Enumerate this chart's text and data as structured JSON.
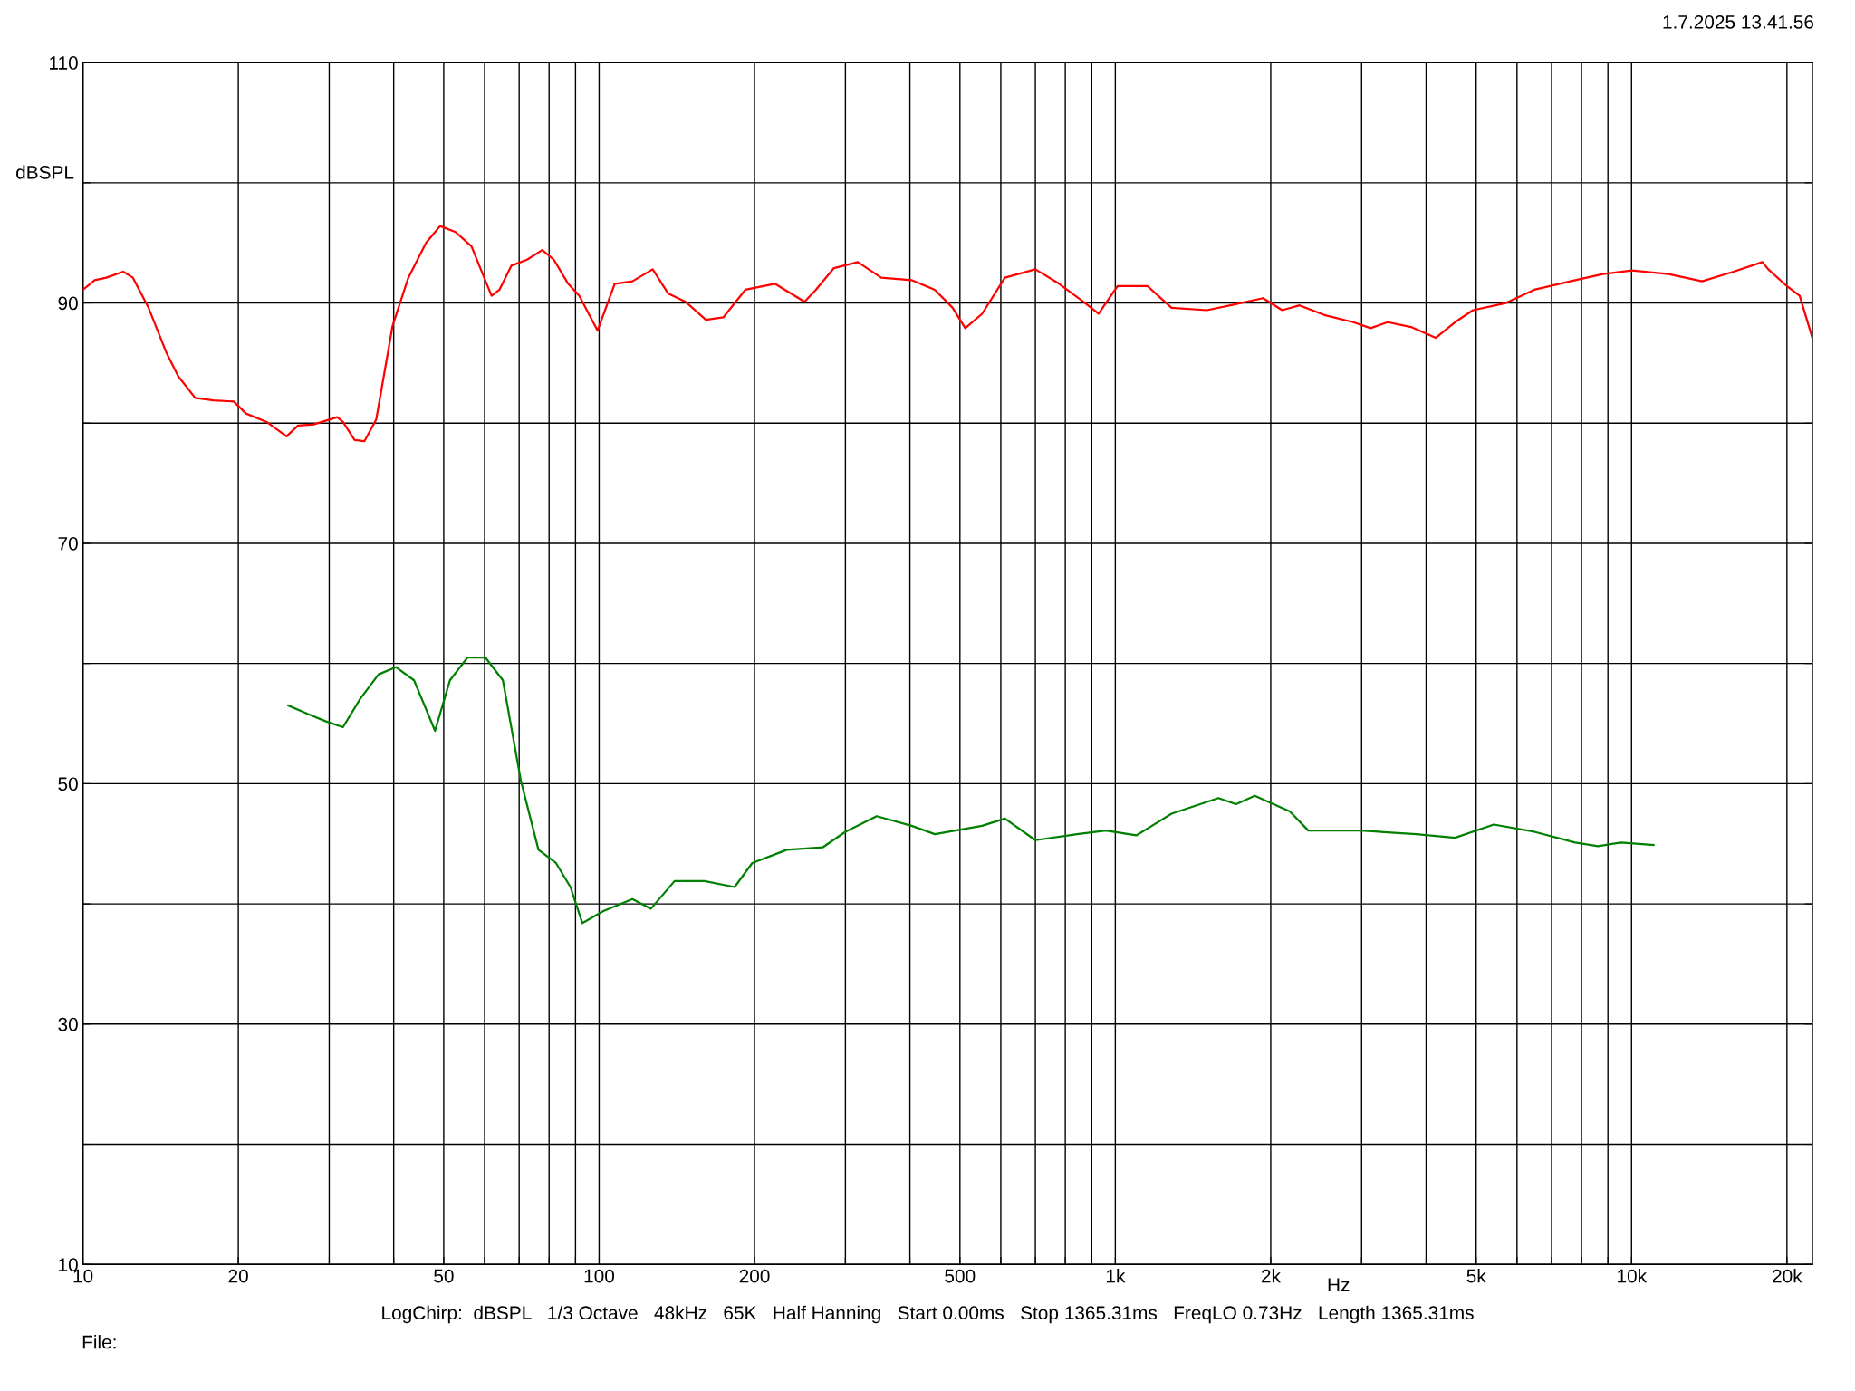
{
  "chart_data": {
    "type": "line",
    "xlabel": "Hz",
    "ylabel": "dBSPL",
    "log": "x",
    "grid": true,
    "line_style": "solid",
    "marker": "none",
    "xlim": [
      10,
      22400
    ],
    "ylim": [
      10,
      110
    ],
    "xticks": [
      10,
      {
        "value": 20,
        "label": "20"
      },
      {
        "value": 30,
        "label": null
      },
      {
        "value": 40,
        "label": null
      },
      50,
      {
        "value": 60,
        "label": null
      },
      {
        "value": 70,
        "label": null
      },
      {
        "value": 80,
        "label": null
      },
      {
        "value": 90,
        "label": null
      },
      100,
      200,
      {
        "value": 300,
        "label": null
      },
      {
        "value": 400,
        "label": null
      },
      500,
      {
        "value": 600,
        "label": null
      },
      {
        "value": 700,
        "label": null
      },
      {
        "value": 800,
        "label": null
      },
      {
        "value": 900,
        "label": null
      },
      {
        "value": 1000,
        "label": "1k"
      },
      {
        "value": 2000,
        "label": "2k"
      },
      {
        "value": 3000,
        "label": null
      },
      {
        "value": 4000,
        "label": null
      },
      {
        "value": 5000,
        "label": "5k"
      },
      {
        "value": 6000,
        "label": null
      },
      {
        "value": 7000,
        "label": null
      },
      {
        "value": 8000,
        "label": null
      },
      {
        "value": 9000,
        "label": null
      },
      {
        "value": 10000,
        "label": "10k"
      },
      {
        "value": 20000,
        "label": "20k"
      }
    ],
    "yticks": [
      10,
      {
        "value": 20,
        "label": null
      },
      30,
      {
        "value": 40,
        "label": null
      },
      50,
      {
        "value": 60,
        "label": null
      },
      70,
      {
        "value": 80,
        "label": null
      },
      90,
      {
        "value": 100,
        "label": null
      },
      110
    ],
    "annotations": [
      "1.7.2025 13.41.56",
      "LogChirp:  dBSPL   1/3 Octave   48kHz   65K   Half Hanning   Start 0.00ms   Stop 1365.31ms   FreqLO 0.73Hz   Length 1365.31ms",
      "File:"
    ],
    "series": [
      {
        "color": "#ff0000",
        "x": [
          10,
          10.54,
          11.1,
          11.97,
          12.5,
          13.4,
          14.5,
          15.3,
          16.5,
          17.9,
          19.6,
          20.7,
          22.7,
          24.8,
          26.1,
          28.0,
          31.1,
          31.9,
          33.6,
          35.1,
          37.0,
          39.8,
          42.7,
          46.2,
          49.2,
          52.7,
          56.6,
          58.6,
          61.9,
          64.1,
          67.6,
          72.5,
          77.6,
          81.7,
          87.1,
          91.5,
          99.3,
          107.2,
          116,
          127,
          136,
          147,
          161,
          174,
          192,
          219,
          250,
          263,
          285,
          317,
          352,
          403,
          447,
          484,
          512,
          552,
          611,
          700,
          778,
          867,
          928,
          1010,
          1155,
          1285,
          1504,
          1671,
          1932,
          2105,
          2275,
          2540,
          2890,
          3122,
          3370,
          3740,
          4175,
          4550,
          4930,
          5710,
          6480,
          7780,
          8800,
          10010,
          11800,
          13700,
          15760,
          17930,
          18400,
          20000,
          21170,
          22400
        ],
        "values": [
          91.1,
          91.9,
          92.1,
          92.6,
          92.1,
          89.6,
          85.9,
          83.9,
          82.1,
          81.9,
          81.8,
          80.8,
          80.1,
          78.9,
          79.8,
          79.9,
          80.5,
          80.1,
          78.6,
          78.5,
          80.3,
          88.1,
          92.1,
          95.0,
          96.4,
          95.9,
          94.7,
          93.1,
          90.6,
          91.1,
          93.1,
          93.6,
          94.4,
          93.6,
          91.6,
          90.6,
          87.7,
          91.6,
          91.8,
          92.8,
          90.8,
          90.1,
          88.6,
          88.8,
          91.1,
          91.6,
          90.1,
          91.1,
          92.9,
          93.4,
          92.1,
          91.9,
          91.1,
          89.6,
          87.9,
          89.1,
          92.1,
          92.8,
          91.6,
          90.1,
          89.1,
          91.4,
          91.4,
          89.6,
          89.4,
          89.8,
          90.4,
          89.4,
          89.8,
          89.0,
          88.4,
          87.9,
          88.4,
          88.0,
          87.1,
          88.4,
          89.4,
          90.0,
          91.1,
          91.9,
          92.4,
          92.7,
          92.4,
          91.8,
          92.6,
          93.4,
          92.8,
          91.4,
          90.6,
          87.1
        ]
      },
      {
        "color": "#008000",
        "x": [
          25.0,
          27.3,
          29.5,
          31.9,
          34.5,
          37.4,
          40.4,
          43.8,
          48.1,
          51.4,
          55.6,
          60.2,
          65.1,
          70.5,
          76.3,
          82.5,
          88.0,
          92.8,
          101.9,
          116,
          126,
          140,
          160,
          183,
          198,
          231,
          271,
          300,
          345,
          403,
          447,
          552,
          611,
          700,
          843,
          958,
          1098,
          1285,
          1584,
          1713,
          1863,
          2178,
          2365,
          2990,
          3830,
          4550,
          5410,
          6480,
          7780,
          8610,
          9540,
          11030
        ],
        "values": [
          56.5,
          55.8,
          55.2,
          54.7,
          57.1,
          59.1,
          59.7,
          58.6,
          54.4,
          58.6,
          60.5,
          60.5,
          58.6,
          50.3,
          44.5,
          43.4,
          41.4,
          38.4,
          39.4,
          40.4,
          39.6,
          41.9,
          41.9,
          41.4,
          43.4,
          44.5,
          44.7,
          46.0,
          47.3,
          46.5,
          45.8,
          46.5,
          47.1,
          45.3,
          45.8,
          46.1,
          45.7,
          47.5,
          48.8,
          48.3,
          49.0,
          47.7,
          46.1,
          46.1,
          45.8,
          45.5,
          46.6,
          46.0,
          45.1,
          44.8,
          45.1,
          44.9
        ]
      }
    ]
  }
}
